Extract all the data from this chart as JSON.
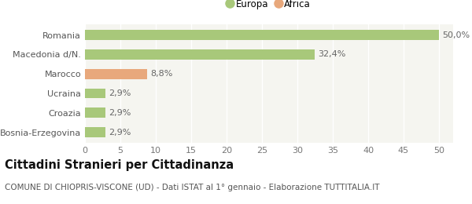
{
  "categories": [
    "Bosnia-Erzegovina",
    "Croazia",
    "Ucraina",
    "Marocco",
    "Macedonia d/N.",
    "Romania"
  ],
  "values": [
    2.9,
    2.9,
    2.9,
    8.8,
    32.4,
    50.0
  ],
  "labels": [
    "2,9%",
    "2,9%",
    "2,9%",
    "8,8%",
    "32,4%",
    "50,0%"
  ],
  "colors": [
    "#a8c87a",
    "#a8c87a",
    "#a8c87a",
    "#e8a87c",
    "#a8c87a",
    "#a8c87a"
  ],
  "legend_items": [
    {
      "label": "Europa",
      "color": "#a8c87a"
    },
    {
      "label": "Africa",
      "color": "#e8a87c"
    }
  ],
  "xlim": [
    0,
    52
  ],
  "xticks": [
    0,
    5,
    10,
    15,
    20,
    25,
    30,
    35,
    40,
    45,
    50
  ],
  "title_bold": "Cittadini Stranieri per Cittadinanza",
  "subtitle": "COMUNE DI CHIOPRIS-VISCONE (UD) - Dati ISTAT al 1° gennaio - Elaborazione TUTTITALIA.IT",
  "bar_height": 0.52,
  "bg_color": "#ffffff",
  "plot_bg_color": "#f5f5f0",
  "grid_color": "#ffffff",
  "label_fontsize": 8,
  "tick_fontsize": 8,
  "title_fontsize": 10.5,
  "subtitle_fontsize": 7.5
}
